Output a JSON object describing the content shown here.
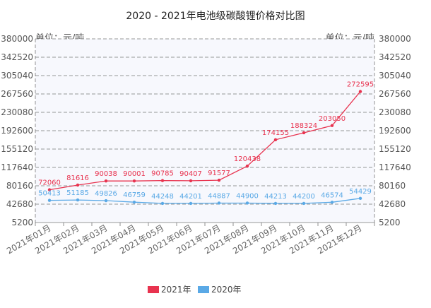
{
  "chart_data": {
    "type": "line",
    "title": "2020 - 2021年电池级碳酸锂价格对比图",
    "ylabel_left": "单位：元/吨",
    "ylabel_right": "单位：元/吨",
    "categories": [
      "2021年01月",
      "2021年02月",
      "2021年03月",
      "2021年04月",
      "2021年05月",
      "2021年06月",
      "2021年07月",
      "2021年08月",
      "2021年09月",
      "2021年10月",
      "2021年11月",
      "2021年12月"
    ],
    "y_ticks": [
      5200,
      42680,
      80160,
      117640,
      155120,
      192600,
      230080,
      267560,
      305040,
      342520,
      380000
    ],
    "ylim": [
      5200,
      380000
    ],
    "grid": true,
    "legend_position": "bottom",
    "series": [
      {
        "name": "2021年",
        "color": "#e8334f",
        "values": [
          72060,
          81616,
          90038,
          90001,
          90785,
          90407,
          91577,
          120438,
          174155,
          188324,
          203050,
          272595
        ]
      },
      {
        "name": "2020年",
        "color": "#5aa9e6",
        "values": [
          50413,
          51185,
          49826,
          46759,
          44248,
          44201,
          44887,
          44900,
          44213,
          44200,
          46574,
          54429
        ]
      }
    ]
  }
}
